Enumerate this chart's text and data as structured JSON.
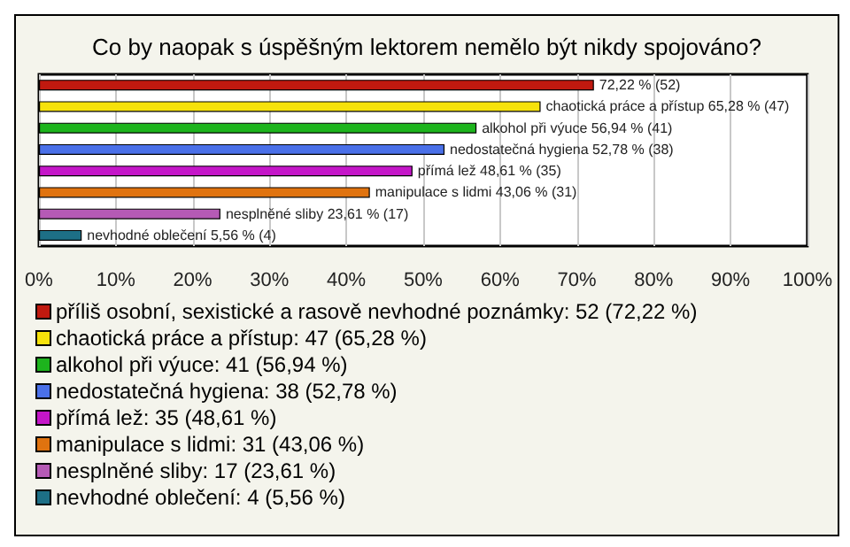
{
  "chart_data": {
    "type": "bar",
    "orientation": "horizontal",
    "stacked": true,
    "title": "Co by naopak s úspěšným lektorem nemělo být nikdy spojováno?",
    "categories": [
      null,
      null,
      null,
      null,
      null,
      null,
      null,
      null
    ],
    "series": [
      {
        "name": "příliš osobní, sexistické a rasově nevhodné poznámky: 52 (72,22 %)",
        "color": "#c0190f",
        "values": [
          72.22,
          null,
          null,
          null,
          null,
          null,
          null,
          null
        ],
        "value_labels": [
          "72,22 % (52)",
          null,
          null,
          null,
          null,
          null,
          null,
          null
        ]
      },
      {
        "name": "chaotická práce a přístup: 47 (65,28 %)",
        "color": "#f6e20b",
        "values": [
          null,
          65.28,
          null,
          null,
          null,
          null,
          null,
          null
        ],
        "value_labels": [
          null,
          "chaotická práce a přístup 65,28 % (47)",
          null,
          null,
          null,
          null,
          null,
          null
        ]
      },
      {
        "name": "alkohol při výuce: 41 (56,94 %)",
        "color": "#1db41d",
        "values": [
          null,
          null,
          56.94,
          null,
          null,
          null,
          null,
          null
        ],
        "value_labels": [
          null,
          null,
          "alkohol při výuce 56,94 % (41)",
          null,
          null,
          null,
          null,
          null
        ]
      },
      {
        "name": "nedostatečná hygiena: 38 (52,78 %)",
        "color": "#4a70e8",
        "values": [
          null,
          null,
          null,
          52.78,
          null,
          null,
          null,
          null
        ],
        "value_labels": [
          null,
          null,
          null,
          "nedostatečná hygiena 52,78 % (38)",
          null,
          null,
          null,
          null
        ]
      },
      {
        "name": "přímá lež: 35 (48,61 %)",
        "color": "#c416c8",
        "values": [
          null,
          null,
          null,
          null,
          48.61,
          null,
          null,
          null
        ],
        "value_labels": [
          null,
          null,
          null,
          null,
          "přímá lež 48,61 % (35)",
          null,
          null,
          null
        ]
      },
      {
        "name": "manipulace s lidmi: 31 (43,06 %)",
        "color": "#e0730f",
        "values": [
          null,
          null,
          null,
          null,
          null,
          43.06,
          null,
          null
        ],
        "value_labels": [
          null,
          null,
          null,
          null,
          null,
          "manipulace s lidmi 43,06 % (31)",
          null,
          null
        ]
      },
      {
        "name": "nesplněné sliby: 17 (23,61 %)",
        "color": "#b55ab5",
        "values": [
          null,
          null,
          null,
          null,
          null,
          null,
          23.61,
          null
        ],
        "value_labels": [
          null,
          null,
          null,
          null,
          null,
          null,
          "nesplněné sliby 23,61 % (17)",
          null
        ]
      },
      {
        "name": "nevhodné oblečení: 4 (5,56 %)",
        "color": "#1d6f86",
        "values": [
          null,
          null,
          null,
          null,
          null,
          null,
          null,
          5.56
        ],
        "value_labels": [
          null,
          null,
          null,
          null,
          null,
          null,
          null,
          "nevhodné oblečení 5,56 % (4)"
        ]
      }
    ],
    "xlim": [
      0,
      100
    ],
    "xticks": [
      {
        "value": 0,
        "label": "0%"
      },
      {
        "value": 10,
        "label": "10%"
      },
      {
        "value": 20,
        "label": "20%"
      },
      {
        "value": 30,
        "label": "30%"
      },
      {
        "value": 40,
        "label": "40%"
      },
      {
        "value": 50,
        "label": "50%"
      },
      {
        "value": 60,
        "label": "60%"
      },
      {
        "value": 70,
        "label": "70%"
      },
      {
        "value": 80,
        "label": "80%"
      },
      {
        "value": 90,
        "label": "90%"
      },
      {
        "value": 100,
        "label": "100%"
      }
    ],
    "grid": "x",
    "legend": "bottom"
  }
}
